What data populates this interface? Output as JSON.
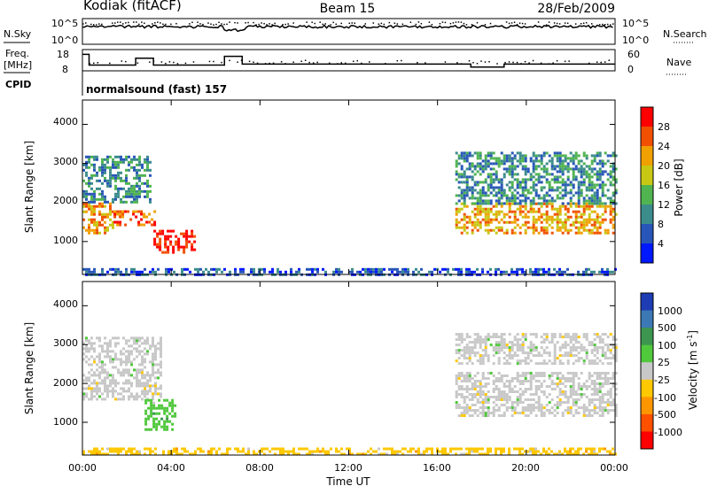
{
  "header": {
    "station": "Kodiak (fitACF)",
    "beam": "Beam 15",
    "date": "28/Feb/2009"
  },
  "nsky_panel": {
    "left_label": "N.Sky",
    "right_label": "N.Search",
    "left_ticks": [
      "10^5",
      "10^0"
    ],
    "right_ticks": [
      "10^5",
      "10^0"
    ]
  },
  "freq_panel": {
    "left_label_1": "Freq.",
    "left_label_2": "[MHz]",
    "right_label": "Nave",
    "left_ticks": [
      "18",
      "8"
    ],
    "right_ticks": [
      "60",
      "0"
    ],
    "cpid_label": "CPID"
  },
  "cpid": {
    "mode": "normalsound (fast) 157"
  },
  "x_axis": {
    "label": "Time UT",
    "ticks": [
      "00:00",
      "04:00",
      "08:00",
      "12:00",
      "16:00",
      "20:00",
      "00:00"
    ],
    "range_hours": [
      0,
      24
    ]
  },
  "power_panel": {
    "ylabel": "Slant Range [km]",
    "y_ticks": [
      "1000",
      "2000",
      "3000",
      "4000"
    ],
    "colorbar_label": "Power [dB]",
    "colorbar_ticks": [
      "4",
      "8",
      "12",
      "16",
      "20",
      "24",
      "28"
    ],
    "colors": [
      "#0018ff",
      "#2856b8",
      "#3c8c8c",
      "#50b450",
      "#c8c814",
      "#f0a000",
      "#f05000",
      "#ff0000"
    ]
  },
  "velocity_panel": {
    "ylabel": "Slant Range [km]",
    "y_ticks": [
      "1000",
      "2000",
      "3000",
      "4000"
    ],
    "colorbar_label": "Velocity [m s",
    "colorbar_label_sup": "-1",
    "colorbar_label_end": "]",
    "colorbar_ticks": [
      "1000",
      "500",
      "100",
      "25",
      "-25",
      "-100",
      "-500",
      "-1000"
    ],
    "colors": [
      "#1e3cb4",
      "#3c78b4",
      "#3c9650",
      "#50c83c",
      "#c8c8c8",
      "#ffc800",
      "#ff9600",
      "#ff5000",
      "#ff0000"
    ]
  },
  "chart_data": {
    "type": "heatmap",
    "x_unit": "hours UT",
    "y_unit": "km",
    "ylim": [
      180,
      4600
    ],
    "power_regions": [
      {
        "t": [
          0.0,
          1.4
        ],
        "r": [
          1200,
          2000
        ],
        "dB": 22
      },
      {
        "t": [
          1.4,
          3.2
        ],
        "r": [
          1400,
          1800
        ],
        "dB": 26
      },
      {
        "t": [
          3.2,
          5.0
        ],
        "r": [
          700,
          1300
        ],
        "dB": 30
      },
      {
        "t": [
          0.0,
          3.0
        ],
        "r": [
          2000,
          3200
        ],
        "dB": 12
      },
      {
        "t": [
          16.8,
          24.0
        ],
        "r": [
          1200,
          2000
        ],
        "dB": 24
      },
      {
        "t": [
          16.8,
          24.0
        ],
        "r": [
          2000,
          3300
        ],
        "dB": 10
      },
      {
        "t": [
          0.0,
          24.0
        ],
        "r": [
          180,
          320
        ],
        "dB": 8
      }
    ],
    "velocity_regions": [
      {
        "t": [
          0.0,
          3.5
        ],
        "r": [
          1600,
          3200
        ],
        "v_ms": 0
      },
      {
        "t": [
          2.8,
          4.2
        ],
        "r": [
          800,
          1600
        ],
        "v_ms": 120
      },
      {
        "t": [
          16.8,
          24.0
        ],
        "r": [
          1200,
          2300
        ],
        "v_ms": 0
      },
      {
        "t": [
          16.8,
          24.0
        ],
        "r": [
          2500,
          3300
        ],
        "v_ms": 0
      },
      {
        "t": [
          0.0,
          24.0
        ],
        "r": [
          180,
          350
        ],
        "v_ms": -60
      }
    ],
    "freq_steps": [
      {
        "t": [
          0.0,
          0.3
        ],
        "mhz": 16
      },
      {
        "t": [
          0.3,
          2.4
        ],
        "mhz": 10.5
      },
      {
        "t": [
          2.4,
          3.2
        ],
        "mhz": 14
      },
      {
        "t": [
          3.2,
          6.4
        ],
        "mhz": 10.5
      },
      {
        "t": [
          6.4,
          7.2
        ],
        "mhz": 15
      },
      {
        "t": [
          7.2,
          17.5
        ],
        "mhz": 11
      },
      {
        "t": [
          17.5,
          19.0
        ],
        "mhz": 9.5
      },
      {
        "t": [
          19.0,
          24.0
        ],
        "mhz": 11
      }
    ],
    "nsky_level": 3.5
  }
}
